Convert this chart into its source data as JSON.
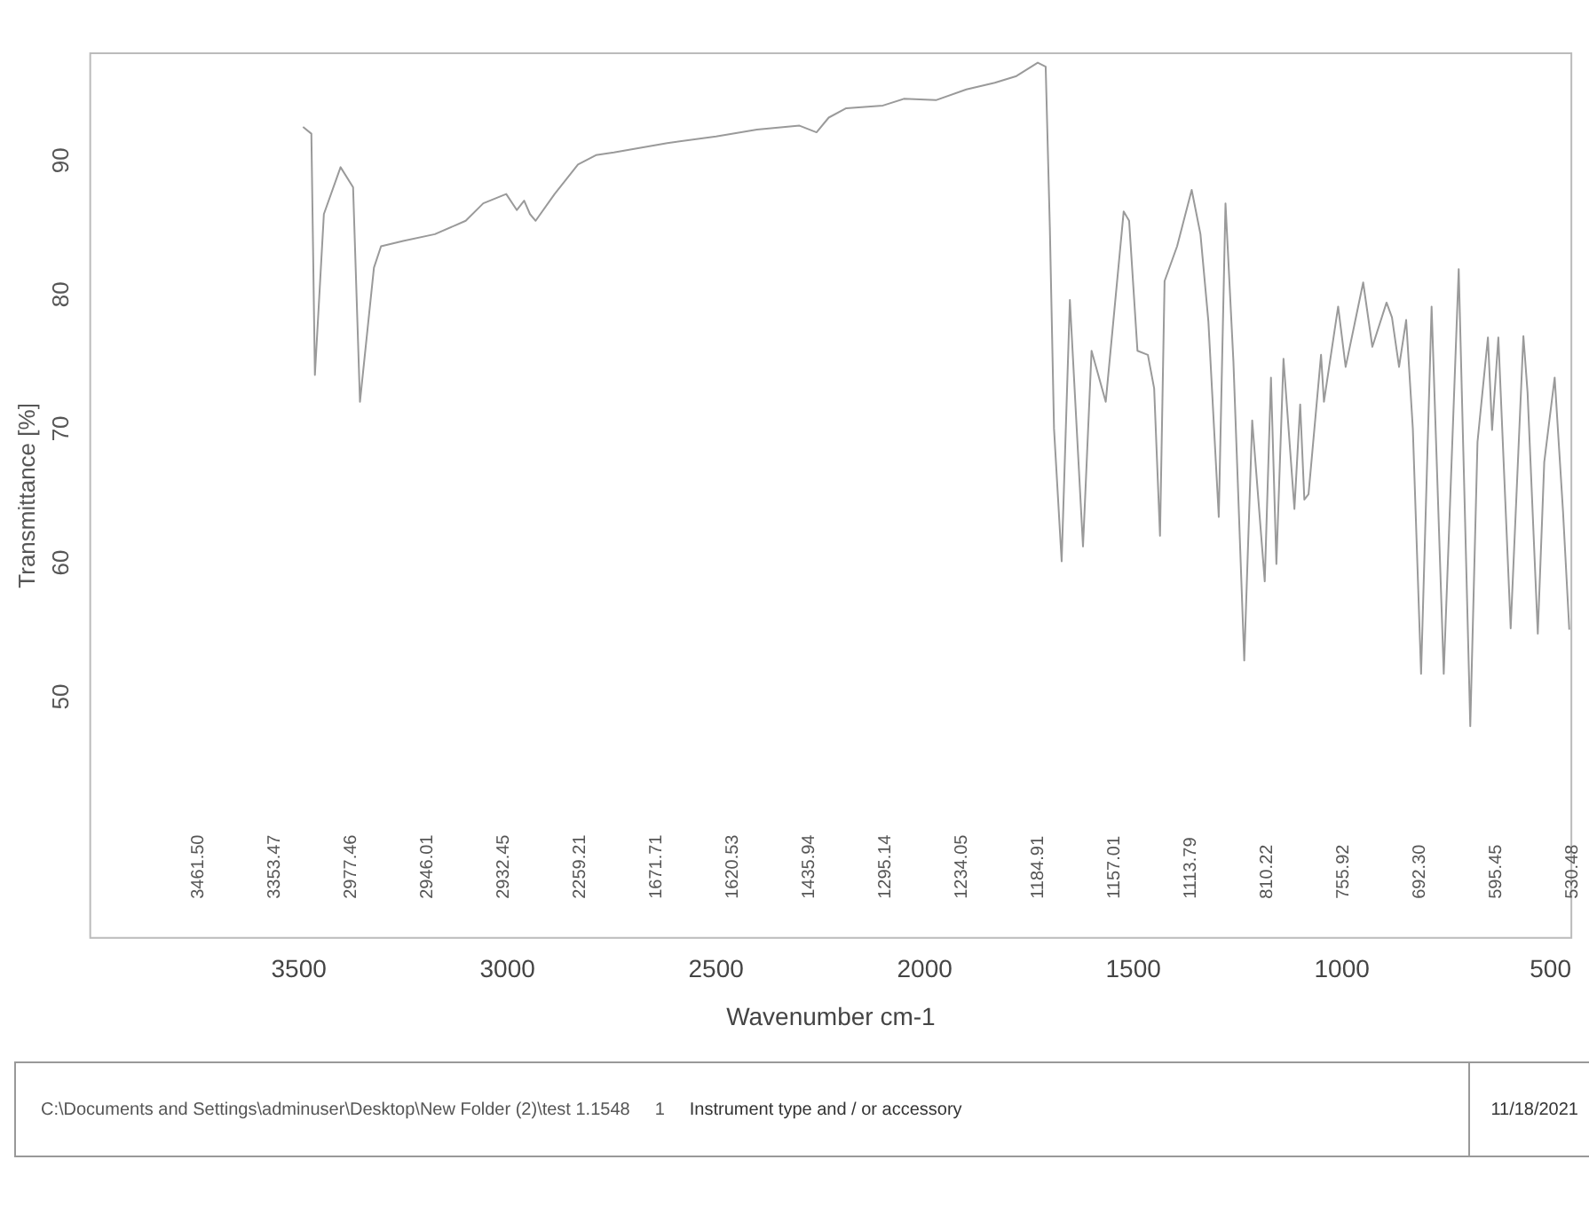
{
  "chart_data": {
    "type": "line",
    "xlabel": "Wavenumber cm-1",
    "ylabel": "Transmittance [%]",
    "xlim": [
      4000,
      450
    ],
    "xticks": [
      3500,
      3000,
      2500,
      2000,
      1500,
      1000,
      500
    ],
    "ylim": [
      32,
      98
    ],
    "yticks": [
      50,
      60,
      70,
      80,
      90
    ],
    "grid": false,
    "legend": false,
    "series": [
      {
        "color": "#9a9a9a",
        "x": [
          3490,
          3470,
          3461.5,
          3440,
          3400,
          3370,
          3353.47,
          3320,
          3303,
          3250,
          3174,
          3100,
          3058,
          3003,
          2977.46,
          2960,
          2946.01,
          2932.45,
          2887,
          2831,
          2788,
          2745,
          2617,
          2500,
          2402,
          2300,
          2259.21,
          2230,
          2188,
          2100,
          2050,
          1973,
          1900,
          1832,
          1780,
          1729,
          1710,
          1700,
          1690,
          1671.71,
          1652,
          1620.53,
          1600,
          1566,
          1523,
          1510,
          1490,
          1465,
          1450,
          1435.94,
          1425,
          1395,
          1360,
          1339,
          1320,
          1295.14,
          1279,
          1260,
          1234.05,
          1215,
          1184.91,
          1170,
          1157.01,
          1140,
          1113.79,
          1100,
          1090,
          1080,
          1050,
          1043,
          1009,
          991,
          949,
          927,
          893,
          880,
          863,
          846,
          830,
          810.22,
          785,
          755.92,
          720,
          692.3,
          675,
          650,
          640,
          625,
          595.45,
          565,
          555,
          530.48,
          515,
          490,
          470,
          455
        ],
        "values": [
          92.5,
          92,
          74,
          86,
          89.5,
          88,
          72,
          82,
          83.6,
          84,
          84.5,
          85.5,
          86.8,
          87.5,
          86.3,
          87,
          86,
          85.5,
          87.5,
          89.7,
          90.4,
          90.6,
          91.3,
          91.8,
          92.3,
          92.6,
          92.1,
          93.2,
          93.9,
          94.1,
          94.6,
          94.5,
          95.3,
          95.8,
          96.3,
          97.3,
          97,
          85,
          70,
          60.1,
          79.6,
          61.2,
          75.8,
          72,
          86.2,
          85.5,
          75.8,
          75.5,
          73,
          62,
          81,
          83.6,
          87.8,
          84.5,
          78,
          63.4,
          86.8,
          75,
          52.7,
          70.6,
          58.6,
          73.8,
          59.9,
          75.2,
          64,
          71.8,
          64.7,
          65.1,
          75.5,
          72,
          79.1,
          74.6,
          80.9,
          76.1,
          79.4,
          78.3,
          74.6,
          78.1,
          70,
          51.7,
          79.1,
          51.7,
          81.9,
          47.8,
          69,
          76.8,
          69.9,
          76.8,
          55.1,
          76.9,
          72.7,
          54.7,
          67.5,
          73.8,
          63.8,
          55
        ]
      }
    ],
    "annotations": [
      "3461.50",
      "3353.47",
      "2977.46",
      "2946.01",
      "2932.45",
      "2259.21",
      "1671.71",
      "1620.53",
      "1435.94",
      "1295.14",
      "1234.05",
      "1184.91",
      "1157.01",
      "1113.79",
      "810.22",
      "755.92",
      "692.30",
      "595.45",
      "530.48",
      "C:\\Documents and Settings\\adminuser\\Desktop\\New Folder (2)\\test 1.1548",
      "1",
      "Instrument type and / or accessory",
      "11/18/2021"
    ]
  }
}
